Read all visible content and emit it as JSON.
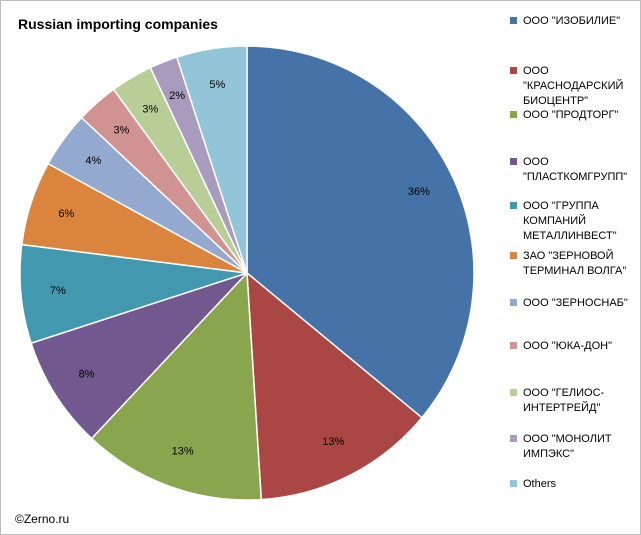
{
  "chart_data": {
    "type": "pie",
    "title": "Russian importing companies",
    "legend_position": "right",
    "slices": [
      {
        "name": "ООО \"ИЗОБИЛИЕ\"",
        "value": 36,
        "label": "36%",
        "color": "#4572A7"
      },
      {
        "name": "ООО \"КРАСНОДАРСКИЙ БИОЦЕНТР\"",
        "value": 13,
        "label": "13%",
        "color": "#AA4643"
      },
      {
        "name": "ООО \"ПРОДТОРГ\"",
        "value": 13,
        "label": "13%",
        "color": "#89A54E"
      },
      {
        "name": "ООО \"ПЛАСТКОМГРУПП\"",
        "value": 8,
        "label": "8%",
        "color": "#71588F"
      },
      {
        "name": "ООО \"ГРУППА КОМПАНИЙ МЕТАЛЛИНВЕСТ\"",
        "value": 7,
        "label": "7%",
        "color": "#4198AF"
      },
      {
        "name": "ЗАО \"ЗЕРНОВОЙ ТЕРМИНАЛ ВОЛГА\"",
        "value": 6,
        "label": "6%",
        "color": "#DB843D"
      },
      {
        "name": "ООО \"ЗЕРНОСНАБ\"",
        "value": 4,
        "label": "4%",
        "color": "#93A9CF"
      },
      {
        "name": "ООО \"ЮКА-ДОН\"",
        "value": 3,
        "label": "3%",
        "color": "#D19392"
      },
      {
        "name": "ООО \"ГЕЛИОС-ИНТЕРТРЕЙД\"",
        "value": 3,
        "label": "3%",
        "color": "#B9CD96"
      },
      {
        "name": "ООО \"МОНОЛИТ ИМПЭКС\"",
        "value": 2,
        "label": "2%",
        "color": "#A99BBD"
      },
      {
        "name": "Others",
        "value": 5,
        "label": "5%",
        "color": "#92C5D7"
      }
    ]
  },
  "source_note": "©Zerno.ru"
}
